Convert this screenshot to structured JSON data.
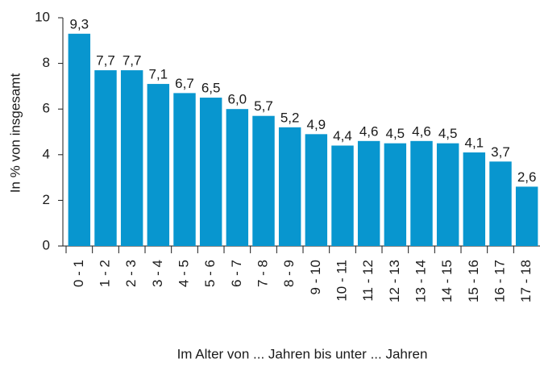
{
  "chart_data": {
    "type": "bar",
    "xlabel": "Im Alter von ... Jahren bis unter ... Jahren",
    "ylabel": "In % von insgesamt",
    "categories": [
      "0 - 1",
      "1 - 2",
      "2 - 3",
      "3 - 4",
      "4 - 5",
      "5 - 6",
      "6 - 7",
      "7 - 8",
      "8 - 9",
      "9 - 10",
      "10 - 11",
      "11 - 12",
      "12 - 13",
      "13 - 14",
      "14 - 15",
      "15 - 16",
      "16 - 17",
      "17 - 18"
    ],
    "values": [
      9.3,
      7.7,
      7.7,
      7.1,
      6.7,
      6.5,
      6.0,
      5.7,
      5.2,
      4.9,
      4.4,
      4.6,
      4.5,
      4.6,
      4.5,
      4.1,
      3.7,
      2.6
    ],
    "value_labels": [
      "9,3",
      "7,7",
      "7,7",
      "7,1",
      "6,7",
      "6,5",
      "6,0",
      "5,7",
      "5,2",
      "4,9",
      "4,4",
      "4,6",
      "4,5",
      "4,6",
      "4,5",
      "4,1",
      "3,7",
      "2,6"
    ],
    "color": "#0896cf",
    "ylim": [
      0,
      10
    ],
    "yticks": [
      0,
      2,
      4,
      6,
      8,
      10
    ],
    "grid": false
  }
}
